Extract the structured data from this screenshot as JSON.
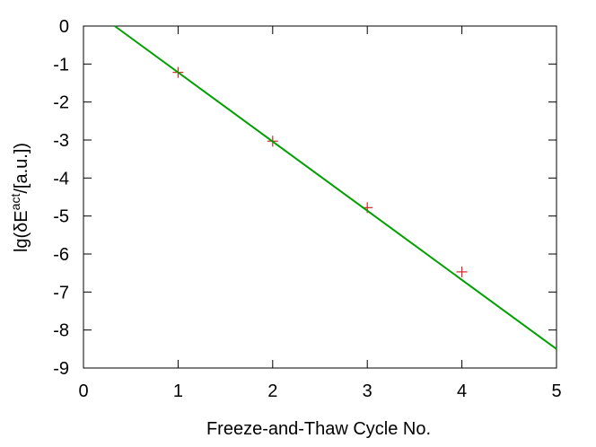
{
  "chart_data": {
    "type": "scatter",
    "title": "",
    "xlabel": "Freeze-and-Thaw Cycle No.",
    "ylabel": {
      "prefix": "lg(δE",
      "superscript": "act",
      "suffix": "/[a.u.])"
    },
    "xlim": [
      0,
      5
    ],
    "ylim": [
      -9,
      0
    ],
    "x_ticks": [
      "0",
      "1",
      "2",
      "3",
      "4",
      "5"
    ],
    "y_ticks": [
      "0",
      "-1",
      "-2",
      "-3",
      "-4",
      "-5",
      "-6",
      "-7",
      "-8",
      "-9"
    ],
    "grid": false,
    "legend": "none",
    "series": [
      {
        "kind": "points",
        "marker": "plus",
        "color": "#d62728",
        "points": [
          {
            "x": 1,
            "y": -1.22
          },
          {
            "x": 2,
            "y": -3.03
          },
          {
            "x": 3,
            "y": -4.78
          },
          {
            "x": 4,
            "y": -6.47
          }
        ]
      },
      {
        "kind": "fit-line",
        "color": "#00a000",
        "points": [
          {
            "x": 0.33,
            "y": 0.0
          },
          {
            "x": 5.0,
            "y": -8.5
          }
        ]
      }
    ]
  }
}
